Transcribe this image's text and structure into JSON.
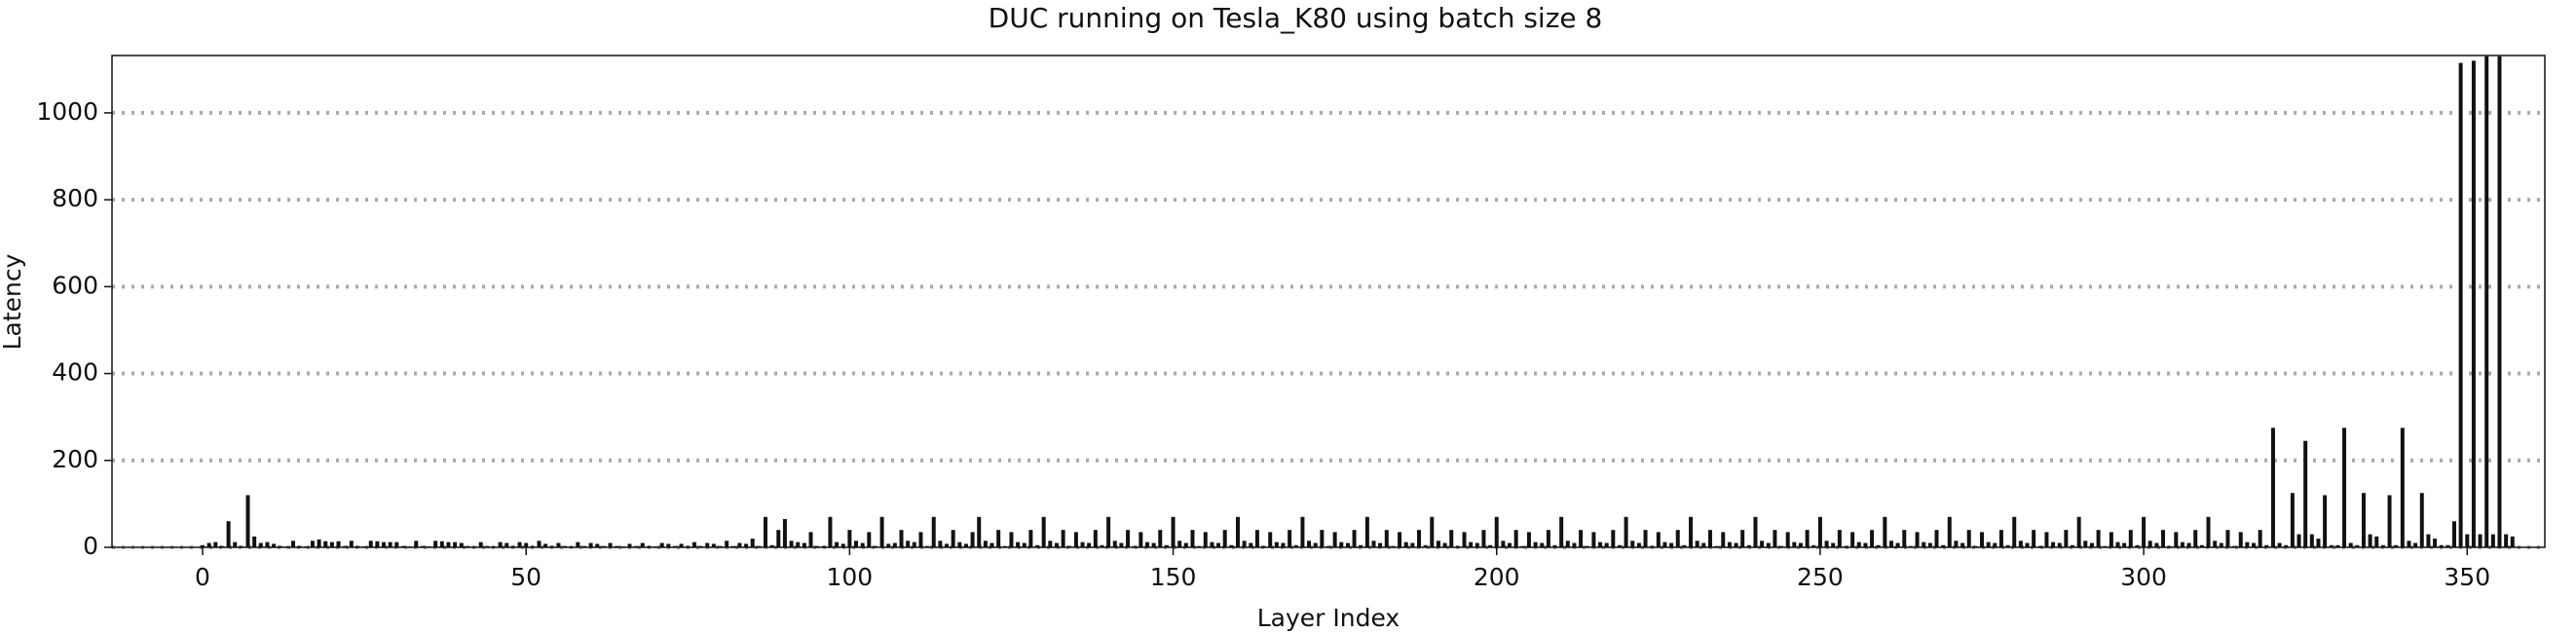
{
  "chart_data": {
    "type": "bar",
    "title": "DUC running on Tesla_K80 using batch size 8",
    "xlabel": "Layer Index",
    "ylabel": "Latency",
    "color": "#111111",
    "grid": true,
    "xlim": [
      -14,
      362
    ],
    "xticks": [
      0,
      50,
      100,
      150,
      200,
      250,
      300,
      350
    ],
    "ylim": [
      0,
      1132
    ],
    "yticks": [
      0,
      200,
      400,
      600,
      800,
      1000
    ],
    "values": [
      5,
      10,
      12,
      3,
      60,
      12,
      3,
      120,
      25,
      10,
      12,
      8,
      3,
      2,
      15,
      3,
      2,
      15,
      18,
      14,
      12,
      14,
      3,
      15,
      3,
      2,
      15,
      14,
      12,
      12,
      12,
      3,
      2,
      15,
      3,
      2,
      15,
      14,
      12,
      12,
      10,
      3,
      2,
      12,
      3,
      2,
      12,
      10,
      3,
      12,
      10,
      3,
      15,
      8,
      3,
      10,
      3,
      2,
      12,
      3,
      10,
      8,
      3,
      10,
      3,
      2,
      8,
      3,
      10,
      3,
      2,
      10,
      8,
      3,
      8,
      3,
      12,
      3,
      10,
      8,
      3,
      15,
      3,
      10,
      8,
      20,
      3,
      70,
      5,
      40,
      65,
      15,
      12,
      10,
      35,
      3,
      3,
      70,
      12,
      8,
      40,
      15,
      10,
      35,
      3,
      70,
      8,
      10,
      40,
      15,
      12,
      35,
      3,
      70,
      15,
      8,
      40,
      12,
      8,
      35,
      70,
      15,
      10,
      40,
      3,
      35,
      12,
      10,
      40,
      5,
      70,
      15,
      10,
      40,
      3,
      35,
      12,
      10,
      40,
      5,
      70,
      15,
      10,
      40,
      3,
      35,
      12,
      10,
      40,
      5,
      70,
      15,
      10,
      40,
      3,
      35,
      12,
      10,
      40,
      5,
      70,
      15,
      10,
      40,
      3,
      35,
      12,
      10,
      40,
      5,
      70,
      15,
      10,
      40,
      3,
      35,
      12,
      10,
      40,
      5,
      70,
      15,
      10,
      40,
      3,
      35,
      12,
      10,
      40,
      5,
      70,
      15,
      10,
      40,
      3,
      35,
      12,
      10,
      40,
      5,
      70,
      15,
      10,
      40,
      3,
      35,
      12,
      10,
      40,
      5,
      70,
      15,
      10,
      40,
      3,
      35,
      12,
      10,
      40,
      5,
      70,
      15,
      10,
      40,
      3,
      35,
      12,
      10,
      40,
      5,
      70,
      15,
      10,
      40,
      3,
      35,
      12,
      10,
      40,
      5,
      70,
      15,
      10,
      40,
      3,
      35,
      12,
      10,
      40,
      5,
      70,
      15,
      10,
      40,
      3,
      35,
      12,
      10,
      40,
      5,
      70,
      15,
      10,
      40,
      3,
      35,
      12,
      10,
      40,
      5,
      70,
      15,
      10,
      40,
      3,
      35,
      12,
      10,
      40,
      5,
      70,
      15,
      10,
      40,
      3,
      35,
      12,
      10,
      40,
      5,
      70,
      15,
      10,
      40,
      3,
      35,
      12,
      10,
      40,
      5,
      70,
      15,
      10,
      40,
      3,
      35,
      12,
      10,
      40,
      5,
      70,
      15,
      10,
      40,
      3,
      35,
      12,
      10,
      40,
      5,
      275,
      10,
      5,
      125,
      30,
      245,
      30,
      20,
      120,
      5,
      5,
      275,
      10,
      5,
      125,
      30,
      25,
      5,
      120,
      5,
      275,
      15,
      10,
      125,
      30,
      20,
      5,
      5,
      60,
      1115,
      30,
      1120,
      30,
      1130,
      30,
      1130,
      30,
      25
    ]
  }
}
